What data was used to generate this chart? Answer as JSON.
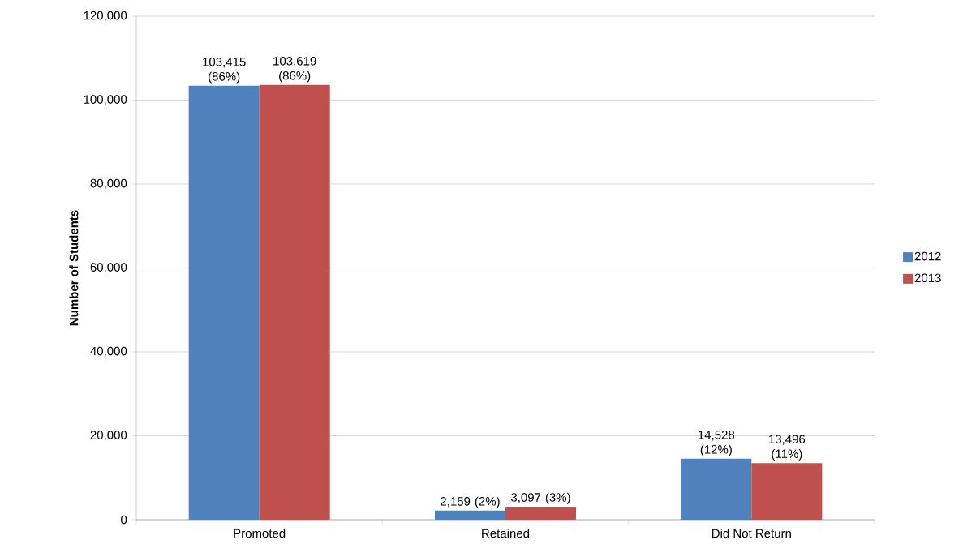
{
  "chart_data": {
    "type": "bar",
    "ylabel": "Number of Students",
    "categories": [
      "Promoted",
      "Retained",
      "Did Not Return"
    ],
    "series": [
      {
        "name": "2012",
        "color": "#4f81bd",
        "values": [
          103415,
          2159,
          14528
        ],
        "value_labels": [
          "103,415 (86%)",
          "2,159 (2%)",
          "14,528 (12%)"
        ]
      },
      {
        "name": "2013",
        "color": "#c0504d",
        "values": [
          103619,
          3097,
          13496
        ],
        "value_labels": [
          "103,619 (86%)",
          "3,097 (3%)",
          "13,496 (11%)"
        ]
      }
    ],
    "ylim": [
      0,
      120000
    ],
    "yticks": [
      {
        "value": 0,
        "label": "0"
      },
      {
        "value": 20000,
        "label": "20,000"
      },
      {
        "value": 40000,
        "label": "40,000"
      },
      {
        "value": 60000,
        "label": "60,000"
      },
      {
        "value": 80000,
        "label": "80,000"
      },
      {
        "value": 100000,
        "label": "100,000"
      },
      {
        "value": 120000,
        "label": "120,000"
      }
    ],
    "grid": "y",
    "legend": "right"
  }
}
